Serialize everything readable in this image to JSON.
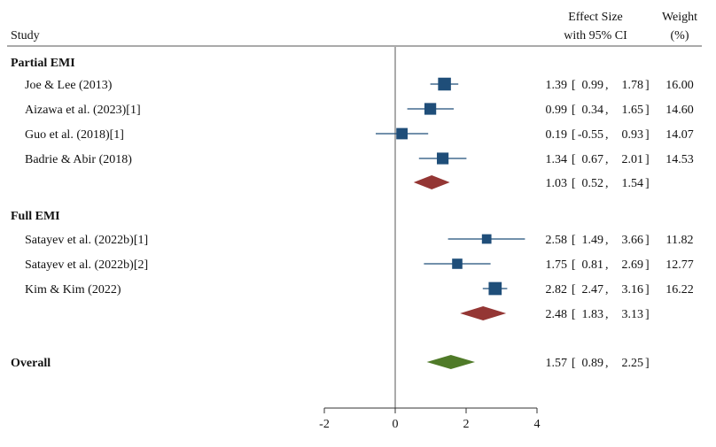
{
  "chart_data": {
    "type": "forest",
    "headers": {
      "study": "Study",
      "effect_line1": "Effect Size",
      "effect_line2": "with 95% CI",
      "weight_line1": "Weight",
      "weight_line2": "(%)"
    },
    "xaxis": {
      "min": -2,
      "max": 4,
      "ticks": [
        -2,
        0,
        2,
        4
      ],
      "reference_line": 0
    },
    "colors": {
      "study_marker": "#1f4e79",
      "subgroup_diamond": "#943634",
      "overall_diamond": "#4f7a28"
    },
    "groups": [
      {
        "name": "Partial EMI",
        "studies": [
          {
            "label": "Joe & Lee (2013)",
            "es": 1.39,
            "lo": 0.99,
            "hi": 1.78,
            "es_text": "1.39",
            "lo_text": "0.99",
            "hi_text": "1.78",
            "weight": "16.00"
          },
          {
            "label": "Aizawa et al. (2023)[1]",
            "es": 0.99,
            "lo": 0.34,
            "hi": 1.65,
            "es_text": "0.99",
            "lo_text": "0.34",
            "hi_text": "1.65",
            "weight": "14.60"
          },
          {
            "label": "Guo et al. (2018)[1]",
            "es": 0.19,
            "lo": -0.55,
            "hi": 0.93,
            "es_text": "0.19",
            "lo_text": "-0.55",
            "hi_text": "0.93",
            "weight": "14.07"
          },
          {
            "label": "Badrie & Abir (2018)",
            "es": 1.34,
            "lo": 0.67,
            "hi": 2.01,
            "es_text": "1.34",
            "lo_text": "0.67",
            "hi_text": "2.01",
            "weight": "14.53"
          }
        ],
        "summary": {
          "es": 1.03,
          "lo": 0.52,
          "hi": 1.54,
          "es_text": "1.03",
          "lo_text": "0.52",
          "hi_text": "1.54"
        }
      },
      {
        "name": "Full EMI",
        "studies": [
          {
            "label": "Satayev et al. (2022b)[1]",
            "es": 2.58,
            "lo": 1.49,
            "hi": 3.66,
            "es_text": "2.58",
            "lo_text": "1.49",
            "hi_text": "3.66",
            "weight": "11.82"
          },
          {
            "label": "Satayev et al. (2022b)[2]",
            "es": 1.75,
            "lo": 0.81,
            "hi": 2.69,
            "es_text": "1.75",
            "lo_text": "0.81",
            "hi_text": "2.69",
            "weight": "12.77"
          },
          {
            "label": "Kim & Kim (2022)",
            "es": 2.82,
            "lo": 2.47,
            "hi": 3.16,
            "es_text": "2.82",
            "lo_text": "2.47",
            "hi_text": "3.16",
            "weight": "16.22"
          }
        ],
        "summary": {
          "es": 2.48,
          "lo": 1.83,
          "hi": 3.13,
          "es_text": "2.48",
          "lo_text": "1.83",
          "hi_text": "3.13"
        }
      }
    ],
    "overall": {
      "label": "Overall",
      "es": 1.57,
      "lo": 0.89,
      "hi": 2.25,
      "es_text": "1.57",
      "lo_text": "0.89",
      "hi_text": "2.25"
    }
  }
}
